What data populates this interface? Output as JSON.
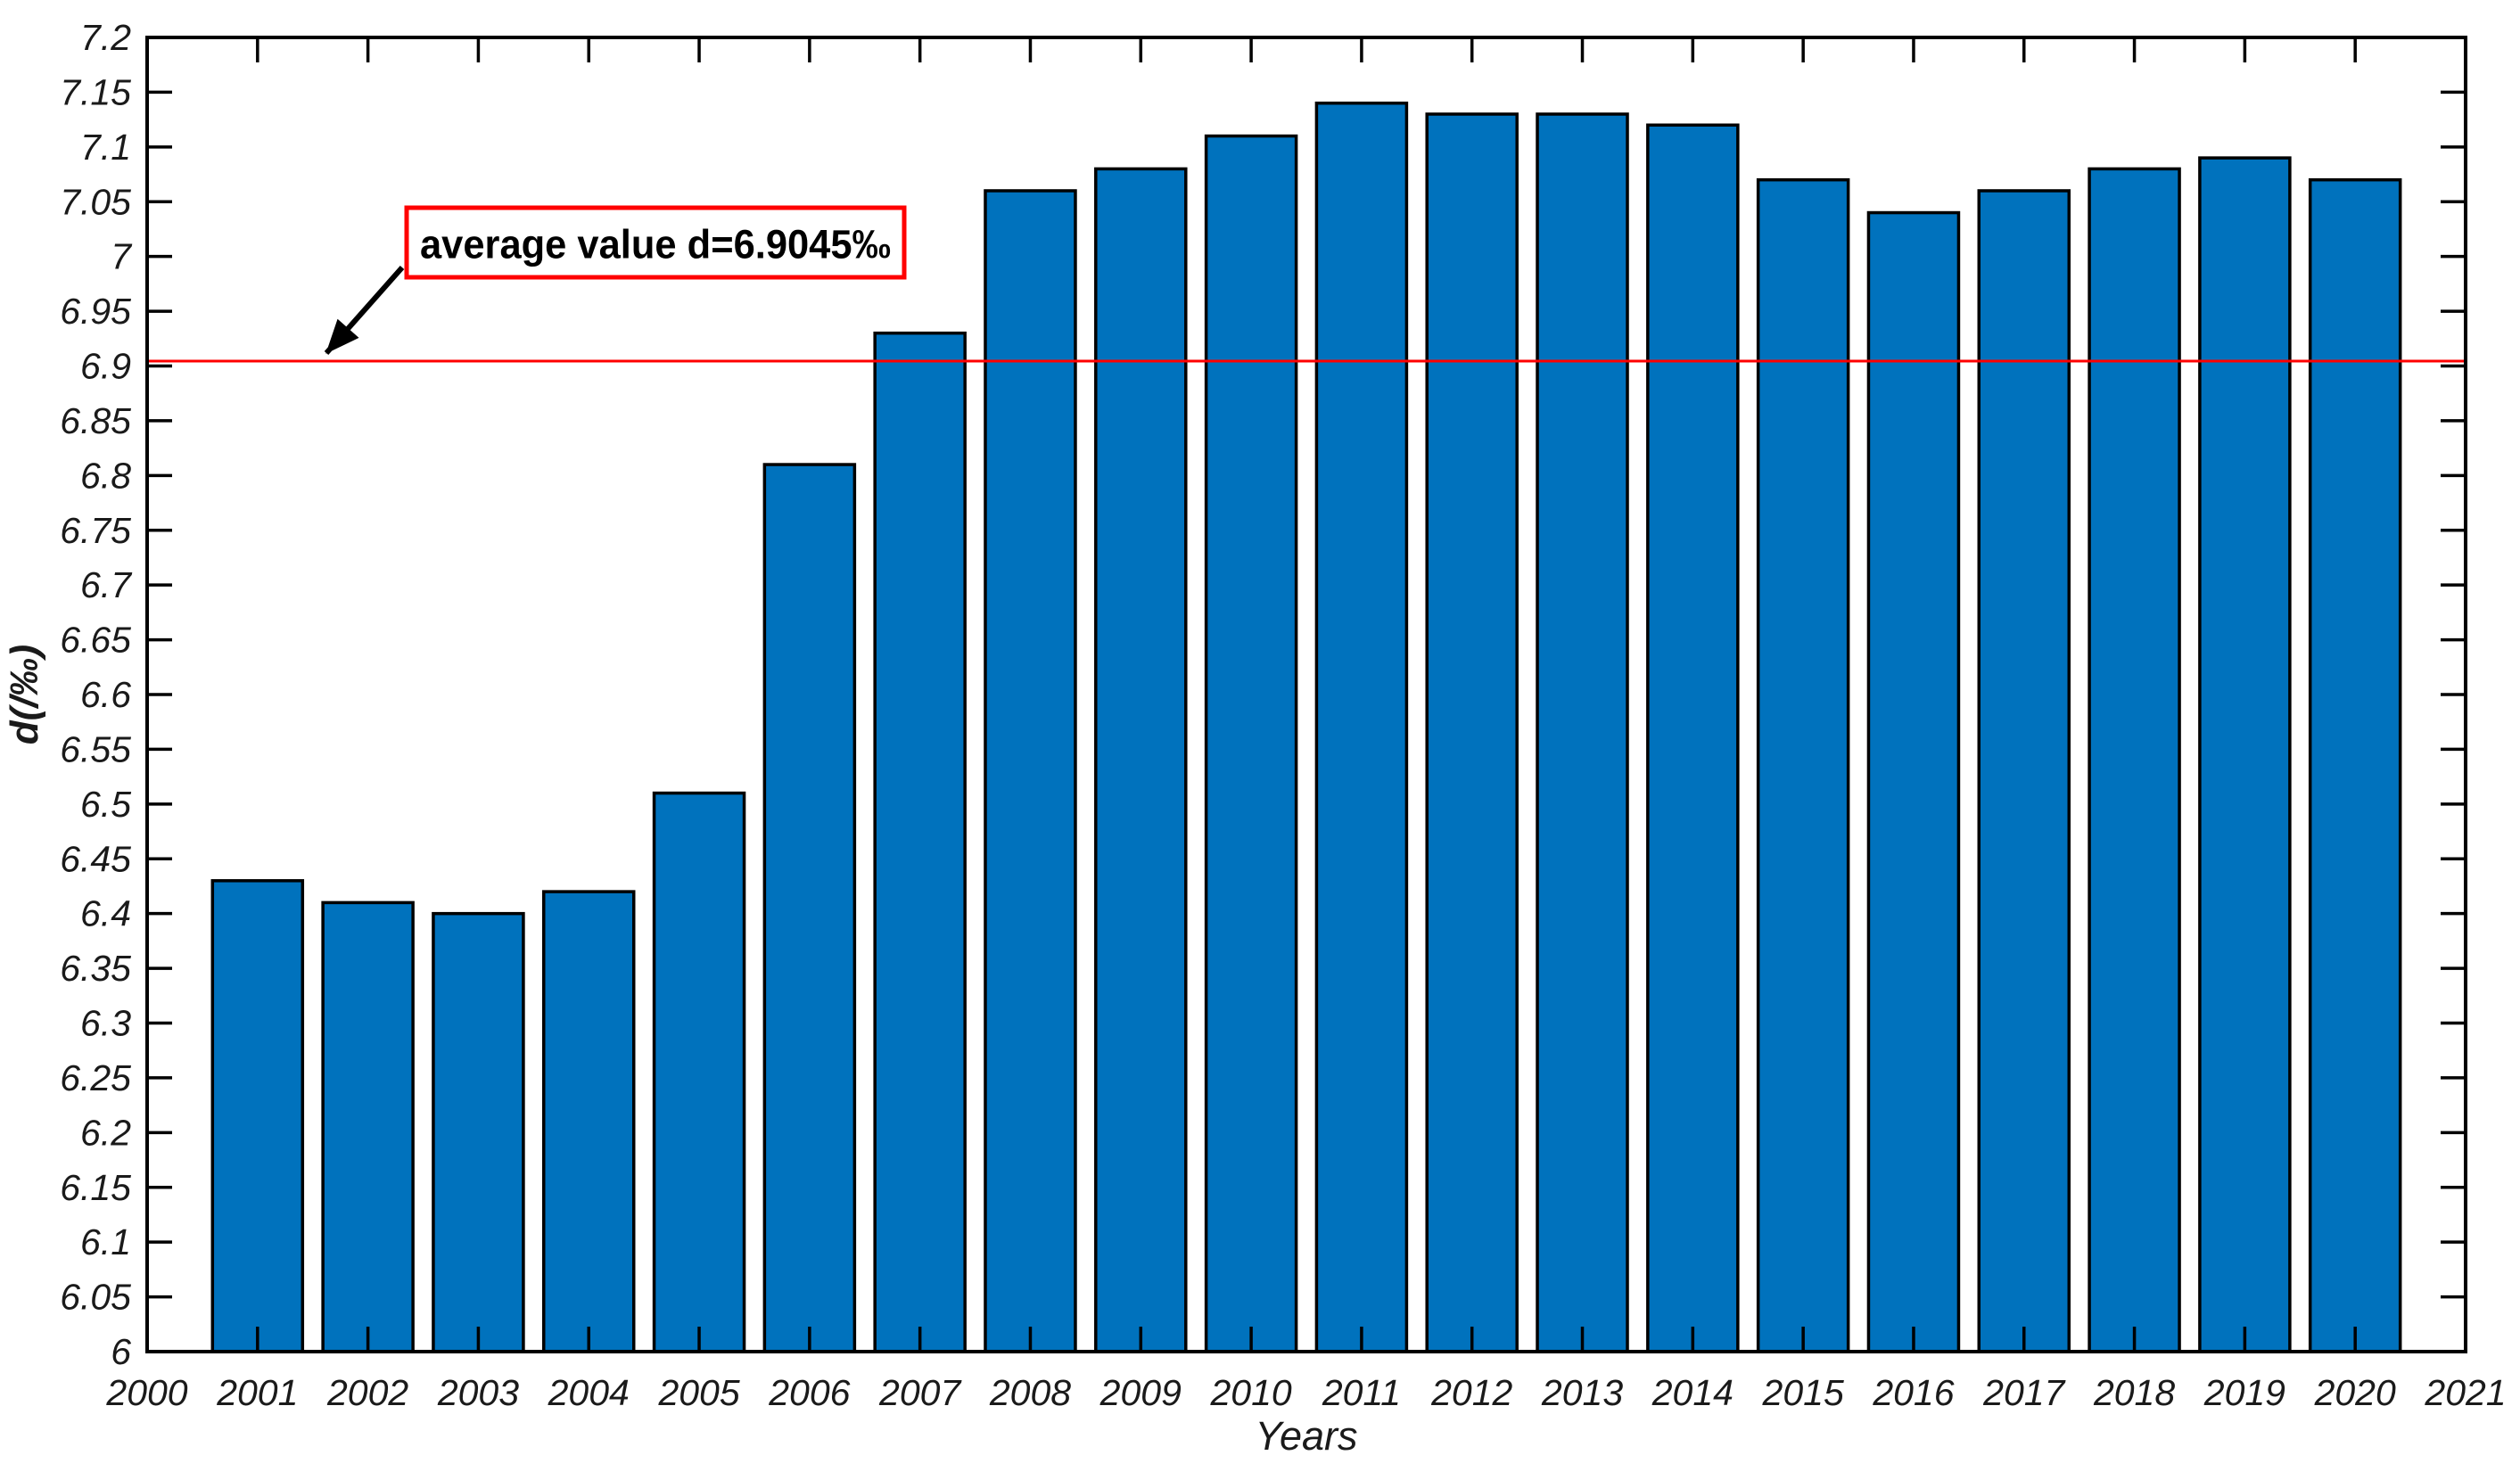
{
  "chart_data": {
    "type": "bar",
    "title": "",
    "xlabel": "Years",
    "ylabel": "d(/‰)",
    "categories": [
      2001,
      2002,
      2003,
      2004,
      2005,
      2006,
      2007,
      2008,
      2009,
      2010,
      2011,
      2012,
      2013,
      2014,
      2015,
      2016,
      2017,
      2018,
      2019,
      2020
    ],
    "values": [
      6.43,
      6.41,
      6.4,
      6.42,
      6.51,
      6.81,
      6.93,
      7.06,
      7.08,
      7.11,
      7.14,
      7.13,
      7.13,
      7.12,
      7.07,
      7.04,
      7.06,
      7.08,
      7.09,
      7.07
    ],
    "xlim": [
      2000,
      2021
    ],
    "ylim": [
      6.0,
      7.2
    ],
    "xtick_labels": [
      "2000",
      "2001",
      "2002",
      "2003",
      "2004",
      "2005",
      "2006",
      "2007",
      "2008",
      "2009",
      "2010",
      "2011",
      "2012",
      "2013",
      "2014",
      "2015",
      "2016",
      "2017",
      "2018",
      "2019",
      "2020",
      "2021"
    ],
    "ytick_labels": [
      "6",
      "6.05",
      "6.1",
      "6.15",
      "6.2",
      "6.25",
      "6.3",
      "6.35",
      "6.4",
      "6.45",
      "6.5",
      "6.55",
      "6.6",
      "6.65",
      "6.7",
      "6.75",
      "6.8",
      "6.85",
      "6.9",
      "6.95",
      "7",
      "7.05",
      "7.1",
      "7.15",
      "7.2"
    ],
    "grid": false,
    "legend": "none",
    "bar_color": "#0072BD",
    "bar_edge_color": "#000000",
    "axis_color": "#000000",
    "average_line": {
      "value": 6.9045,
      "color": "#FF0000",
      "annotation_label": "average value d=6.9045‰"
    }
  }
}
